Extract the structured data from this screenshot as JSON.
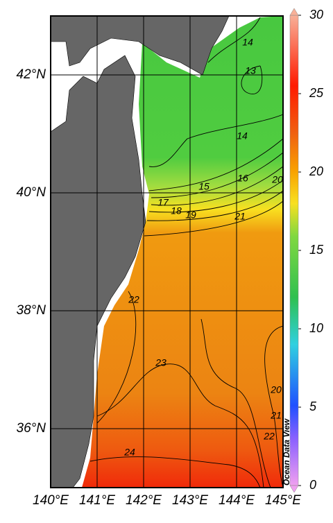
{
  "map": {
    "xlim": [
      140,
      145
    ],
    "ylim": [
      35,
      43
    ],
    "xticks": [
      {
        "value": 140,
        "label": "140°E"
      },
      {
        "value": 141,
        "label": "141°E"
      },
      {
        "value": 142,
        "label": "142°E"
      },
      {
        "value": 143,
        "label": "143°E"
      },
      {
        "value": 144,
        "label": "144°E"
      },
      {
        "value": 145,
        "label": "145°E"
      }
    ],
    "yticks": [
      {
        "value": 36,
        "label": "36°N"
      },
      {
        "value": 38,
        "label": "38°N"
      },
      {
        "value": 40,
        "label": "40°N"
      },
      {
        "value": 42,
        "label": "42°N"
      }
    ],
    "contour_labels": [
      14,
      13,
      14,
      16,
      20,
      15,
      17,
      18,
      19,
      21,
      22,
      23,
      20,
      21,
      22,
      24
    ]
  },
  "colorbar": {
    "range": [
      0,
      30
    ],
    "ticks": [
      0,
      5,
      10,
      15,
      20,
      25,
      30
    ],
    "label": "Ocean Data View"
  }
}
